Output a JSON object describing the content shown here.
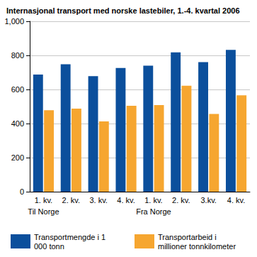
{
  "chart_data": {
    "type": "bar",
    "title": "Internasjonal transport med norske lastebiler, 1.-4. kvartal 2006",
    "categories": [
      "1. kv.",
      "2. kv.",
      "3. kv.",
      "4. kv.",
      "1. kv.",
      "2. kv.",
      "3.kv.",
      "4. kv."
    ],
    "category_groups": [
      {
        "name": "Til Norge",
        "count": 4
      },
      {
        "name": "Fra Norge",
        "count": 4
      }
    ],
    "series": [
      {
        "name": "Transportmengde i 1 000 tonn",
        "color": "#0b4f9c",
        "values": [
          688,
          748,
          678,
          726,
          740,
          818,
          760,
          832
        ]
      },
      {
        "name": "Transportarbeid i millioner tonnkilometer",
        "color": "#f6a630",
        "values": [
          478,
          487,
          412,
          504,
          508,
          622,
          456,
          566
        ]
      }
    ],
    "ylim": [
      0,
      1000
    ],
    "yticks": [
      0,
      200,
      400,
      600,
      800,
      1000
    ],
    "grid": true,
    "legend": "bottom"
  }
}
